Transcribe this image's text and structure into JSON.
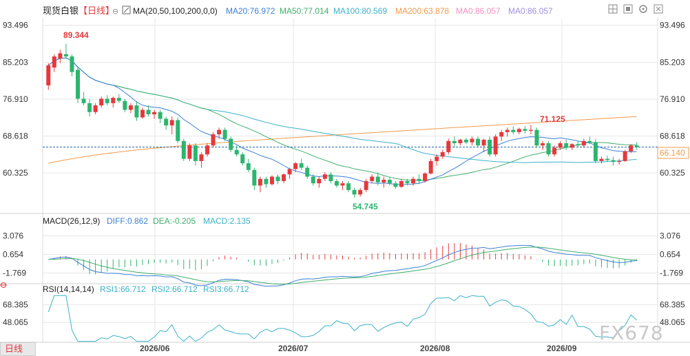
{
  "header": {
    "symbol": "现货白银",
    "period": "【日线】",
    "ma_params": "MA(20,50,100,200,0,0)",
    "ma_values": [
      {
        "label": "MA20:76.972",
        "color": "#3a7fd5"
      },
      {
        "label": "MA50:77.014",
        "color": "#3fae6a"
      },
      {
        "label": "MA100:80.569",
        "color": "#3bb0c9"
      },
      {
        "label": "MA200:63.878",
        "color": "#f29a4a"
      },
      {
        "label": "MA0:86.057",
        "color": "#f08fbf"
      },
      {
        "label": "MA0:86.057",
        "color": "#a08fe0"
      }
    ]
  },
  "macd": {
    "title": "MACD(26,12,9)",
    "diff": "DIFF:0.862",
    "dea": "DEA:-0.205",
    "macd": "MACD:2.135",
    "diff_color": "#3a7fd5",
    "dea_color": "#3fae6a",
    "macd_color": "#3bb0c9",
    "axis_labels": [
      "3.076",
      "0.654",
      "-1.769"
    ]
  },
  "rsi": {
    "title": "RSI(14,14,14)",
    "rsi1": "RSI1:66.712",
    "rsi2": "RSI2:66.712",
    "rsi3": "RSI3:66.712",
    "color": "#3bb0c9",
    "axis_labels": [
      "68.385",
      "48.065"
    ]
  },
  "price_axis_labels": [
    "93.496",
    "85.203",
    "76.910",
    "68.618",
    "60.325"
  ],
  "last_price": "66.140",
  "annotations": {
    "high": "89.344",
    "low": "54.745",
    "peak2": "71.125"
  },
  "x_labels": [
    "2026/06",
    "2026/07",
    "2026/08",
    "2026/09"
  ],
  "bottom_tab": "日线",
  "watermark": "FX678",
  "colors": {
    "up": "#e4393c",
    "down": "#2cb56f",
    "grid": "#e6e6e6",
    "axis_text": "#333333"
  },
  "chart_data": {
    "type": "candlestick",
    "y_range": [
      52.0,
      95.0
    ],
    "x_tick_labels": [
      "2026/06",
      "2026/07",
      "2026/08",
      "2026/09"
    ],
    "ohlc": [
      [
        80.0,
        85.0,
        79.0,
        84.5
      ],
      [
        84.0,
        87.0,
        83.0,
        86.5
      ],
      [
        86.0,
        88.0,
        85.0,
        87.2
      ],
      [
        87.0,
        89.34,
        86.0,
        86.5
      ],
      [
        86.5,
        87.0,
        82.0,
        83.0
      ],
      [
        83.5,
        84.0,
        76.0,
        77.0
      ],
      [
        77.0,
        78.5,
        75.5,
        76.0
      ],
      [
        76.0,
        77.0,
        73.0,
        74.0
      ],
      [
        74.0,
        76.0,
        73.5,
        75.5
      ],
      [
        75.5,
        77.5,
        75.0,
        77.0
      ],
      [
        77.0,
        77.8,
        75.5,
        76.0
      ],
      [
        76.0,
        77.5,
        75.0,
        77.2
      ],
      [
        77.2,
        78.0,
        76.0,
        76.5
      ],
      [
        76.5,
        77.0,
        74.0,
        74.5
      ],
      [
        74.5,
        76.0,
        73.8,
        75.5
      ],
      [
        75.5,
        76.5,
        72.0,
        72.8
      ],
      [
        72.8,
        75.0,
        72.5,
        74.5
      ],
      [
        74.5,
        75.5,
        73.0,
        73.5
      ],
      [
        73.5,
        74.5,
        72.5,
        74.0
      ],
      [
        74.0,
        74.5,
        71.5,
        72.5
      ],
      [
        72.5,
        73.0,
        70.0,
        71.0
      ],
      [
        71.0,
        73.0,
        69.0,
        72.2
      ],
      [
        72.2,
        72.8,
        67.0,
        67.5
      ],
      [
        67.5,
        68.0,
        63.0,
        63.5
      ],
      [
        63.5,
        67.0,
        63.0,
        66.5
      ],
      [
        66.5,
        67.0,
        62.0,
        63.0
      ],
      [
        63.0,
        65.0,
        61.5,
        64.5
      ],
      [
        64.5,
        67.0,
        64.0,
        66.5
      ],
      [
        66.5,
        69.5,
        66.0,
        69.0
      ],
      [
        69.0,
        70.5,
        68.0,
        70.0
      ],
      [
        70.0,
        70.5,
        67.5,
        68.0
      ],
      [
        68.0,
        68.5,
        65.0,
        65.5
      ],
      [
        65.5,
        66.5,
        64.0,
        64.5
      ],
      [
        64.5,
        65.0,
        62.0,
        62.5
      ],
      [
        62.5,
        63.5,
        60.5,
        61.0
      ],
      [
        61.0,
        61.5,
        56.5,
        57.5
      ],
      [
        57.5,
        59.5,
        56.0,
        59.0
      ],
      [
        59.0,
        59.5,
        57.0,
        57.8
      ],
      [
        57.8,
        59.8,
        57.5,
        59.5
      ],
      [
        59.5,
        60.0,
        57.8,
        58.5
      ],
      [
        58.5,
        60.2,
        58.0,
        60.0
      ],
      [
        60.0,
        61.5,
        59.0,
        61.2
      ],
      [
        61.2,
        62.8,
        60.5,
        62.5
      ],
      [
        62.5,
        63.5,
        61.0,
        61.5
      ],
      [
        61.5,
        62.0,
        59.0,
        59.5
      ],
      [
        59.5,
        60.0,
        57.5,
        58.0
      ],
      [
        58.0,
        59.5,
        57.0,
        59.0
      ],
      [
        59.0,
        60.5,
        58.5,
        60.0
      ],
      [
        60.0,
        60.5,
        58.0,
        58.5
      ],
      [
        58.5,
        59.0,
        57.0,
        57.5
      ],
      [
        57.5,
        58.5,
        56.5,
        58.0
      ],
      [
        58.0,
        58.5,
        56.0,
        56.5
      ],
      [
        56.5,
        57.0,
        54.745,
        55.5
      ],
      [
        55.5,
        57.0,
        55.0,
        56.5
      ],
      [
        56.5,
        59.0,
        56.0,
        58.5
      ],
      [
        58.5,
        60.0,
        58.0,
        59.5
      ],
      [
        59.5,
        60.5,
        57.5,
        58.2
      ],
      [
        58.2,
        59.5,
        57.0,
        58.8
      ],
      [
        58.8,
        59.5,
        57.5,
        58.0
      ],
      [
        58.0,
        58.5,
        56.8,
        57.2
      ],
      [
        57.2,
        59.0,
        57.0,
        58.5
      ],
      [
        58.5,
        59.0,
        57.5,
        58.0
      ],
      [
        58.0,
        59.5,
        57.5,
        59.0
      ],
      [
        59.0,
        60.0,
        57.8,
        58.5
      ],
      [
        58.5,
        60.5,
        58.2,
        60.2
      ],
      [
        60.2,
        63.5,
        60.0,
        63.0
      ],
      [
        63.0,
        64.5,
        62.0,
        64.0
      ],
      [
        64.0,
        65.5,
        63.5,
        65.0
      ],
      [
        65.0,
        68.0,
        64.5,
        67.5
      ],
      [
        67.5,
        68.5,
        66.0,
        67.0
      ],
      [
        67.0,
        68.0,
        66.5,
        67.8
      ],
      [
        67.8,
        68.2,
        66.8,
        67.2
      ],
      [
        67.2,
        68.5,
        66.5,
        68.0
      ],
      [
        68.0,
        68.5,
        66.0,
        66.5
      ],
      [
        66.5,
        68.0,
        65.0,
        67.8
      ],
      [
        67.8,
        68.5,
        64.0,
        64.5
      ],
      [
        64.5,
        69.0,
        64.0,
        68.5
      ],
      [
        68.5,
        70.0,
        67.5,
        69.5
      ],
      [
        69.5,
        70.5,
        68.5,
        70.0
      ],
      [
        70.0,
        70.8,
        69.0,
        69.5
      ],
      [
        69.5,
        70.5,
        69.0,
        70.2
      ],
      [
        70.2,
        70.8,
        69.2,
        69.8
      ],
      [
        69.8,
        71.125,
        69.0,
        70.0
      ],
      [
        70.0,
        70.5,
        66.0,
        66.5
      ],
      [
        66.5,
        67.5,
        65.5,
        67.0
      ],
      [
        67.0,
        67.5,
        64.0,
        64.5
      ],
      [
        64.5,
        66.5,
        64.0,
        66.0
      ],
      [
        66.0,
        67.5,
        65.5,
        67.0
      ],
      [
        67.0,
        67.8,
        65.5,
        66.0
      ],
      [
        66.0,
        67.0,
        65.5,
        66.8
      ],
      [
        66.8,
        67.5,
        66.0,
        66.5
      ],
      [
        66.5,
        68.0,
        66.0,
        67.5
      ],
      [
        67.5,
        68.5,
        66.8,
        67.2
      ],
      [
        67.2,
        68.0,
        62.5,
        63.0
      ],
      [
        63.0,
        64.0,
        62.5,
        63.5
      ],
      [
        63.5,
        64.2,
        62.8,
        63.2
      ],
      [
        63.2,
        64.0,
        62.0,
        62.8
      ],
      [
        62.8,
        63.5,
        62.2,
        63.0
      ],
      [
        63.0,
        65.5,
        62.8,
        65.2
      ],
      [
        65.2,
        66.8,
        64.8,
        66.5
      ],
      [
        66.5,
        67.2,
        65.5,
        66.14
      ]
    ]
  }
}
